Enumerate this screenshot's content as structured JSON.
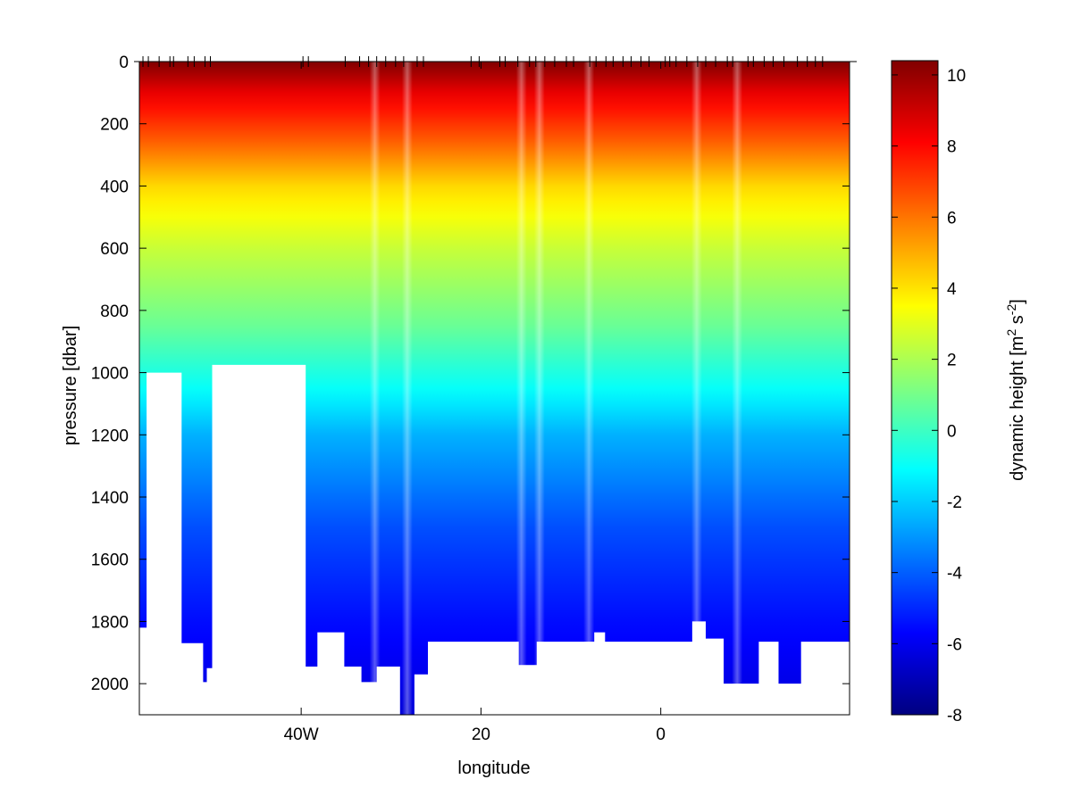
{
  "chart_data": {
    "type": "heatmap",
    "title": "",
    "xlabel": "longitude",
    "ylabel": "pressure [dbar]",
    "xlim": [
      -58,
      21
    ],
    "ylim": [
      0,
      2100
    ],
    "y_reversed": true,
    "x_ticks": [
      {
        "value": -40,
        "label": "40W"
      },
      {
        "value": -20,
        "label": "20"
      },
      {
        "value": 0,
        "label": "0"
      }
    ],
    "y_ticks": [
      0,
      200,
      400,
      600,
      800,
      1000,
      1200,
      1400,
      1600,
      1800,
      2000
    ],
    "colorbar": {
      "label": "dynamic height [m² s⁻²]",
      "label_main": "dynamic height [m",
      "label_sup1": "2",
      "label_mid": " s",
      "label_sup2": "-2",
      "label_end": "]",
      "range": [
        -8,
        10.4
      ],
      "ticks": [
        -8,
        -6,
        -4,
        -2,
        0,
        2,
        4,
        6,
        8,
        10
      ],
      "colormap": "jet"
    },
    "stations_lon": [
      -57.6,
      -57.0,
      -55.8,
      -54.6,
      -54.2,
      -52.6,
      -51.9,
      -50.7,
      -50.1,
      -39.8,
      -39.2,
      -35.1,
      -33.5,
      -32.5,
      -31.6,
      -30.6,
      -29.5,
      -28.6,
      -27.1,
      -26.4,
      -21.1,
      -20.2,
      -17.9,
      -17.3,
      -15.9,
      -14.6,
      -13.9,
      -12.9,
      -11.8,
      -10.5,
      -9.7,
      -7.9,
      -7.2,
      -6.1,
      -5.3,
      -4.2,
      -3.3,
      -2.2,
      -1.3,
      0.5,
      1.0,
      1.7,
      2.9,
      4.1,
      5.0,
      6.1,
      7.4,
      8.0,
      9.7,
      10.3,
      11.5,
      12.5,
      13.7,
      15.2,
      16.3,
      17.2,
      18.0
    ],
    "bottom_profile": [
      {
        "lon": -58.0,
        "p": 1820
      },
      {
        "lon": -57.2,
        "p": 1000
      },
      {
        "lon": -53.3,
        "p": 1870
      },
      {
        "lon": -50.9,
        "p": 1995
      },
      {
        "lon": -50.5,
        "p": 1950
      },
      {
        "lon": -49.9,
        "p": 975
      },
      {
        "lon": -39.5,
        "p": 1945
      },
      {
        "lon": -38.2,
        "p": 1835
      },
      {
        "lon": -35.2,
        "p": 1945
      },
      {
        "lon": -33.3,
        "p": 1995
      },
      {
        "lon": -31.6,
        "p": 1945
      },
      {
        "lon": -29.0,
        "p": 2100
      },
      {
        "lon": -27.4,
        "p": 1970
      },
      {
        "lon": -25.9,
        "p": 1865
      },
      {
        "lon": -15.8,
        "p": 1940
      },
      {
        "lon": -13.8,
        "p": 1865
      },
      {
        "lon": -7.4,
        "p": 1835
      },
      {
        "lon": -6.2,
        "p": 1865
      },
      {
        "lon": 3.5,
        "p": 1800
      },
      {
        "lon": 5.0,
        "p": 1855
      },
      {
        "lon": 7.0,
        "p": 2000
      },
      {
        "lon": 10.9,
        "p": 1865
      },
      {
        "lon": 13.1,
        "p": 2000
      },
      {
        "lon": 15.6,
        "p": 1865
      }
    ],
    "annotations": []
  }
}
